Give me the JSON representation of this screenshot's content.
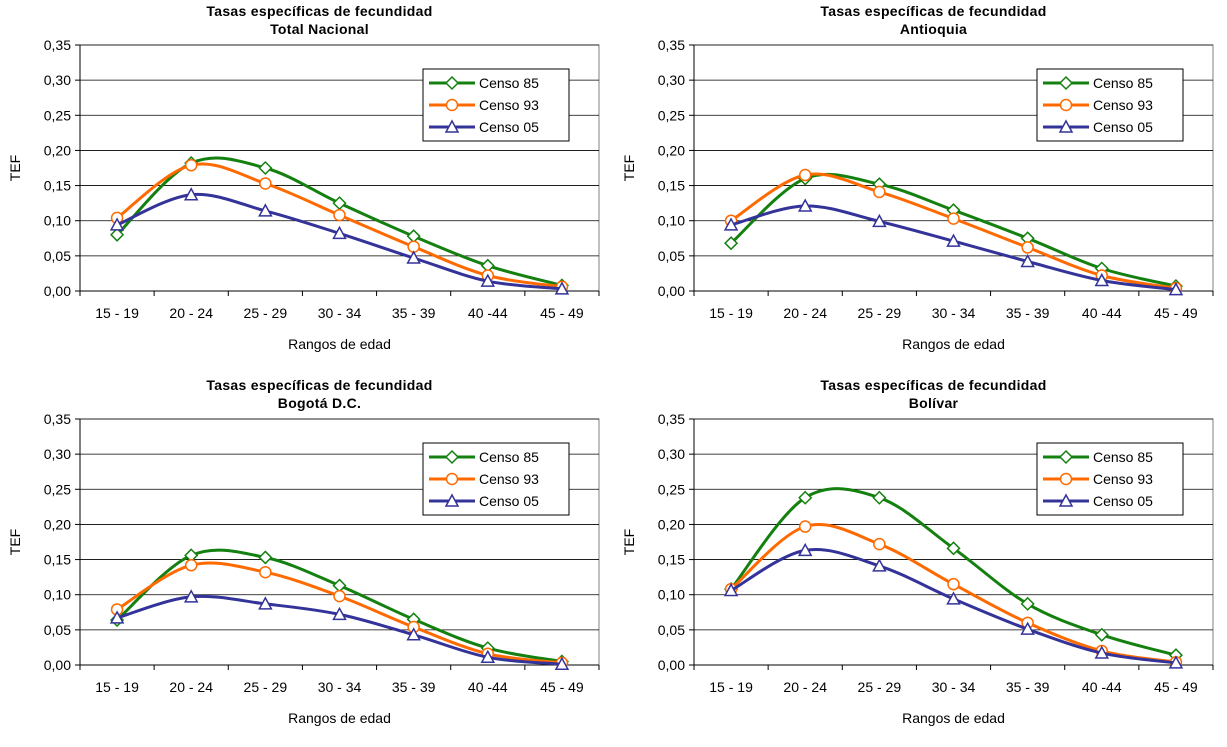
{
  "colors": {
    "Censo 85": "#13800f",
    "Censo 93": "#ff6a00",
    "Censo 05": "#333399"
  },
  "chart_data": [
    {
      "type": "line",
      "title": "Tasas específicas de fecundidad",
      "subtitle": "Total Nacional",
      "xlabel": "Rangos de edad",
      "ylabel": "TEF",
      "categories": [
        "15 - 19",
        "20 - 24",
        "25 - 29",
        "30 - 34",
        "35 - 39",
        "40 -44",
        "45 - 49"
      ],
      "yticks": [
        "0,00",
        "0,05",
        "0,10",
        "0,15",
        "0,20",
        "0,25",
        "0,30",
        "0,35"
      ],
      "ylim": [
        0,
        0.35
      ],
      "legend": "right",
      "series": [
        {
          "name": "Censo 85",
          "marker": "diamond",
          "values": [
            0.08,
            0.182,
            0.175,
            0.125,
            0.078,
            0.036,
            0.008
          ]
        },
        {
          "name": "Censo 93",
          "marker": "circle",
          "values": [
            0.104,
            0.179,
            0.153,
            0.108,
            0.063,
            0.022,
            0.006
          ]
        },
        {
          "name": "Censo 05",
          "marker": "triangle",
          "values": [
            0.094,
            0.137,
            0.114,
            0.082,
            0.047,
            0.014,
            0.003
          ]
        }
      ]
    },
    {
      "type": "line",
      "title": "Tasas específicas de fecundidad",
      "subtitle": "Antioquia",
      "xlabel": "Rangos de edad",
      "ylabel": "TEF",
      "categories": [
        "15 - 19",
        "20 - 24",
        "25 - 29",
        "30 - 34",
        "35 - 39",
        "40 -44",
        "45 - 49"
      ],
      "yticks": [
        "0,00",
        "0,05",
        "0,10",
        "0,15",
        "0,20",
        "0,25",
        "0,30",
        "0,35"
      ],
      "ylim": [
        0,
        0.35
      ],
      "legend": "right",
      "series": [
        {
          "name": "Censo 85",
          "marker": "diamond",
          "values": [
            0.068,
            0.16,
            0.152,
            0.115,
            0.075,
            0.032,
            0.007
          ]
        },
        {
          "name": "Censo 93",
          "marker": "circle",
          "values": [
            0.1,
            0.165,
            0.141,
            0.103,
            0.062,
            0.022,
            0.004
          ]
        },
        {
          "name": "Censo 05",
          "marker": "triangle",
          "values": [
            0.094,
            0.121,
            0.099,
            0.071,
            0.042,
            0.015,
            0.002
          ]
        }
      ]
    },
    {
      "type": "line",
      "title": "Tasas específicas de fecundidad",
      "subtitle": "Bogotá D.C.",
      "xlabel": "Rangos de edad",
      "ylabel": "TEF",
      "categories": [
        "15 - 19",
        "20 - 24",
        "25 - 29",
        "30 - 34",
        "35 - 39",
        "40 -44",
        "45 - 49"
      ],
      "yticks": [
        "0,00",
        "0,05",
        "0,10",
        "0,15",
        "0,20",
        "0,25",
        "0,30",
        "0,35"
      ],
      "ylim": [
        0,
        0.35
      ],
      "legend": "right",
      "series": [
        {
          "name": "Censo 85",
          "marker": "diamond",
          "values": [
            0.064,
            0.156,
            0.153,
            0.113,
            0.065,
            0.024,
            0.005
          ]
        },
        {
          "name": "Censo 93",
          "marker": "circle",
          "values": [
            0.079,
            0.142,
            0.132,
            0.098,
            0.054,
            0.016,
            0.003
          ]
        },
        {
          "name": "Censo 05",
          "marker": "triangle",
          "values": [
            0.067,
            0.097,
            0.087,
            0.072,
            0.043,
            0.011,
            0.001
          ]
        }
      ]
    },
    {
      "type": "line",
      "title": "Tasas específicas de fecundidad",
      "subtitle": "Bolívar",
      "xlabel": "Rangos de edad",
      "ylabel": "TEF",
      "categories": [
        "15 - 19",
        "20 - 24",
        "25 - 29",
        "30 - 34",
        "35 - 39",
        "40 -44",
        "45 - 49"
      ],
      "yticks": [
        "0,00",
        "0,05",
        "0,10",
        "0,15",
        "0,20",
        "0,25",
        "0,30",
        "0,35"
      ],
      "ylim": [
        0,
        0.35
      ],
      "legend": "right",
      "series": [
        {
          "name": "Censo 85",
          "marker": "diamond",
          "values": [
            0.108,
            0.238,
            0.238,
            0.166,
            0.087,
            0.043,
            0.014
          ]
        },
        {
          "name": "Censo 93",
          "marker": "circle",
          "values": [
            0.108,
            0.197,
            0.172,
            0.115,
            0.06,
            0.02,
            0.004
          ]
        },
        {
          "name": "Censo 05",
          "marker": "triangle",
          "values": [
            0.106,
            0.163,
            0.141,
            0.094,
            0.051,
            0.017,
            0.003
          ]
        }
      ]
    }
  ]
}
